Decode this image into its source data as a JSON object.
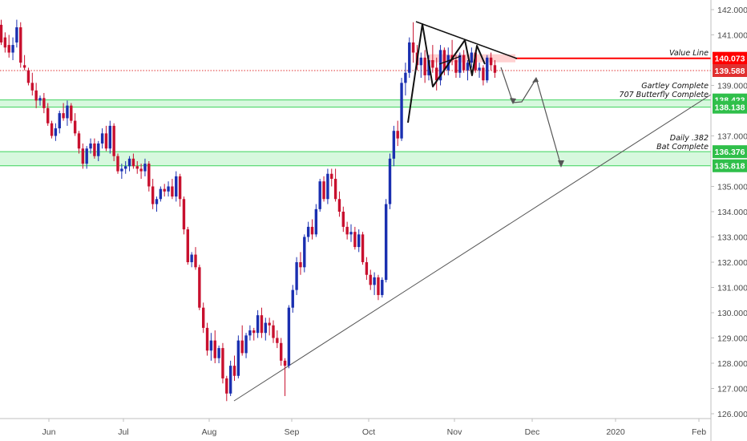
{
  "chart_data": {
    "type": "candlestick",
    "title": "",
    "xlabel": "",
    "ylabel": "",
    "ylim": [
      125.8,
      142.3
    ],
    "grid": false,
    "y_ticks": [
      "142.000",
      "141.000",
      "139.000",
      "137.000",
      "135.000",
      "134.000",
      "133.000",
      "132.000",
      "131.000",
      "130.000",
      "129.000",
      "128.000",
      "127.000",
      "126.000"
    ],
    "y_tick_values": [
      142,
      141,
      139,
      137,
      135,
      134,
      133,
      132,
      131,
      130,
      129,
      128,
      127,
      126
    ],
    "x_ticks": [
      "Jun",
      "Jul",
      "Aug",
      "Sep",
      "Oct",
      "Nov",
      "Dec",
      "2020",
      "Feb"
    ],
    "colors": {
      "up": "#1a2fb0",
      "down": "#c8102e",
      "zone_fill": "#c9f5d3",
      "zone_line": "#3cd35c",
      "value_line": "#ff0000",
      "trend_line": "#555555"
    },
    "price_labels": [
      {
        "text": "140.073",
        "value": 140.073,
        "color": "#ff0000"
      },
      {
        "text": "139.588",
        "value": 139.588,
        "color": "#e03030"
      },
      {
        "text": "138.423",
        "value": 138.423,
        "color": "#2fbf4a"
      },
      {
        "text": "138.138",
        "value": 138.138,
        "color": "#2fbf4a"
      },
      {
        "text": "136.376",
        "value": 136.376,
        "color": "#2fbf4a"
      },
      {
        "text": "135.818",
        "value": 135.818,
        "color": "#2fbf4a"
      }
    ],
    "zones": [
      {
        "low": 138.138,
        "high": 138.423
      },
      {
        "low": 135.818,
        "high": 136.376
      }
    ],
    "value_line": {
      "label": "Value Line",
      "value": 140.073
    },
    "dotted_line": {
      "value": 139.588
    },
    "annotations": [
      {
        "lines": [
          "Gartley Complete",
          "707 Butterfly Complete"
        ]
      },
      {
        "lines": [
          "Daily .382",
          "Bat Complete"
        ]
      }
    ],
    "candles": [
      [
        141.4,
        141.6,
        140.6,
        140.7
      ],
      [
        140.9,
        141.1,
        140.3,
        140.5
      ],
      [
        140.6,
        141.0,
        140.1,
        140.3
      ],
      [
        140.3,
        140.9,
        140.0,
        140.6
      ],
      [
        140.7,
        141.6,
        140.5,
        141.3
      ],
      [
        141.3,
        141.5,
        139.7,
        139.9
      ],
      [
        139.8,
        140.2,
        139.6,
        139.7
      ],
      [
        139.6,
        139.7,
        139.0,
        139.1
      ],
      [
        139.1,
        139.5,
        138.6,
        138.8
      ],
      [
        138.8,
        139.1,
        138.1,
        138.4
      ],
      [
        138.4,
        138.6,
        138.2,
        138.5
      ],
      [
        138.5,
        138.7,
        137.9,
        138.1
      ],
      [
        138.1,
        138.3,
        137.4,
        137.5
      ],
      [
        137.5,
        137.6,
        136.9,
        137.0
      ],
      [
        137.0,
        137.5,
        136.8,
        137.3
      ],
      [
        137.3,
        138.0,
        137.1,
        137.9
      ],
      [
        137.9,
        138.3,
        137.6,
        137.7
      ],
      [
        137.7,
        138.4,
        137.4,
        138.2
      ],
      [
        138.2,
        138.3,
        137.5,
        137.6
      ],
      [
        137.6,
        137.9,
        137.0,
        137.1
      ],
      [
        137.1,
        137.2,
        136.3,
        136.5
      ],
      [
        136.5,
        136.7,
        135.7,
        135.9
      ],
      [
        135.9,
        136.6,
        135.7,
        136.5
      ],
      [
        136.5,
        136.9,
        136.3,
        136.7
      ],
      [
        136.7,
        136.9,
        136.1,
        136.2
      ],
      [
        136.2,
        136.8,
        136.0,
        136.7
      ],
      [
        136.7,
        137.3,
        136.5,
        137.1
      ],
      [
        137.1,
        137.4,
        136.4,
        136.5
      ],
      [
        136.5,
        137.6,
        136.3,
        137.4
      ],
      [
        137.4,
        137.5,
        136.0,
        136.2
      ],
      [
        136.2,
        136.3,
        135.5,
        135.6
      ],
      [
        135.6,
        135.9,
        135.3,
        135.7
      ],
      [
        135.7,
        136.0,
        135.5,
        135.8
      ],
      [
        135.8,
        136.2,
        135.6,
        136.1
      ],
      [
        136.1,
        136.3,
        135.7,
        135.8
      ],
      [
        135.8,
        136.0,
        135.5,
        135.7
      ],
      [
        135.7,
        135.9,
        135.3,
        135.6
      ],
      [
        135.6,
        136.1,
        135.4,
        135.9
      ],
      [
        135.9,
        136.0,
        134.8,
        135.0
      ],
      [
        135.0,
        135.3,
        134.1,
        134.3
      ],
      [
        134.3,
        134.6,
        134.0,
        134.5
      ],
      [
        134.5,
        135.0,
        134.4,
        134.9
      ],
      [
        134.9,
        135.1,
        134.6,
        134.8
      ],
      [
        134.8,
        135.2,
        134.6,
        135.0
      ],
      [
        135.0,
        135.3,
        134.5,
        134.6
      ],
      [
        134.6,
        135.6,
        134.4,
        135.4
      ],
      [
        135.4,
        135.5,
        134.2,
        134.5
      ],
      [
        134.5,
        134.6,
        133.1,
        133.3
      ],
      [
        133.3,
        133.4,
        131.9,
        132.0
      ],
      [
        132.0,
        132.4,
        131.8,
        132.3
      ],
      [
        132.3,
        132.6,
        131.7,
        131.8
      ],
      [
        131.8,
        131.9,
        130.1,
        130.2
      ],
      [
        130.2,
        130.4,
        129.2,
        129.4
      ],
      [
        129.4,
        129.6,
        128.3,
        128.5
      ],
      [
        128.5,
        129.2,
        128.1,
        128.9
      ],
      [
        128.9,
        129.3,
        128.0,
        128.2
      ],
      [
        128.2,
        128.7,
        128.0,
        128.6
      ],
      [
        128.6,
        128.8,
        127.2,
        127.4
      ],
      [
        127.4,
        127.5,
        126.5,
        126.8
      ],
      [
        126.8,
        128.1,
        126.7,
        127.9
      ],
      [
        127.9,
        128.3,
        127.3,
        127.5
      ],
      [
        127.5,
        129.1,
        127.4,
        128.9
      ],
      [
        128.9,
        129.5,
        128.3,
        128.4
      ],
      [
        128.4,
        129.2,
        128.2,
        129.1
      ],
      [
        129.1,
        129.5,
        128.9,
        129.3
      ],
      [
        129.3,
        129.4,
        128.9,
        129.2
      ],
      [
        129.2,
        130.1,
        129.0,
        129.9
      ],
      [
        129.9,
        130.2,
        129.0,
        129.2
      ],
      [
        129.2,
        129.8,
        128.9,
        129.6
      ],
      [
        129.6,
        129.8,
        129.1,
        129.5
      ],
      [
        129.5,
        129.7,
        128.8,
        129.0
      ],
      [
        129.0,
        129.3,
        128.6,
        128.8
      ],
      [
        128.8,
        129.0,
        127.9,
        128.1
      ],
      [
        128.1,
        128.2,
        126.7,
        127.9
      ],
      [
        127.9,
        130.3,
        127.8,
        130.2
      ],
      [
        130.2,
        131.1,
        130.0,
        130.9
      ],
      [
        130.9,
        132.2,
        130.7,
        132.0
      ],
      [
        132.0,
        132.4,
        131.5,
        131.8
      ],
      [
        131.8,
        133.1,
        131.6,
        133.0
      ],
      [
        133.0,
        133.6,
        132.8,
        133.4
      ],
      [
        133.4,
        133.7,
        132.9,
        133.1
      ],
      [
        133.1,
        134.3,
        133.0,
        134.1
      ],
      [
        134.1,
        135.3,
        134.0,
        135.2
      ],
      [
        135.2,
        135.4,
        134.4,
        134.5
      ],
      [
        134.5,
        135.7,
        134.3,
        135.5
      ],
      [
        135.5,
        135.7,
        135.0,
        135.3
      ],
      [
        135.3,
        135.7,
        134.4,
        134.5
      ],
      [
        134.5,
        134.8,
        133.8,
        134.0
      ],
      [
        134.0,
        134.2,
        133.2,
        133.4
      ],
      [
        133.4,
        133.6,
        132.9,
        133.1
      ],
      [
        133.1,
        133.5,
        132.8,
        133.2
      ],
      [
        133.2,
        133.4,
        132.5,
        132.6
      ],
      [
        132.6,
        133.3,
        132.4,
        133.1
      ],
      [
        133.1,
        133.2,
        131.9,
        132.0
      ],
      [
        132.0,
        132.2,
        131.3,
        131.5
      ],
      [
        131.5,
        131.7,
        130.9,
        131.1
      ],
      [
        131.1,
        131.6,
        130.7,
        131.4
      ],
      [
        131.4,
        131.5,
        130.5,
        130.7
      ],
      [
        130.7,
        131.4,
        130.6,
        131.3
      ],
      [
        131.3,
        134.5,
        131.2,
        134.3
      ],
      [
        134.3,
        136.3,
        134.1,
        136.1
      ],
      [
        136.1,
        137.4,
        135.8,
        137.2
      ],
      [
        137.2,
        137.6,
        136.6,
        136.9
      ],
      [
        136.9,
        139.3,
        136.8,
        139.1
      ],
      [
        139.1,
        139.9,
        138.6,
        139.5
      ],
      [
        139.5,
        140.9,
        139.3,
        140.7
      ],
      [
        140.7,
        141.5,
        139.9,
        140.3
      ],
      [
        140.3,
        140.6,
        139.6,
        139.8
      ],
      [
        139.8,
        140.3,
        139.3,
        140.1
      ],
      [
        140.1,
        140.4,
        139.1,
        139.4
      ],
      [
        139.4,
        140.2,
        139.2,
        140.0
      ],
      [
        140.0,
        140.6,
        139.5,
        139.7
      ],
      [
        139.7,
        140.1,
        138.8,
        139.2
      ],
      [
        139.2,
        140.6,
        139.0,
        140.4
      ],
      [
        140.4,
        140.5,
        139.4,
        139.6
      ],
      [
        139.6,
        140.5,
        139.4,
        140.2
      ],
      [
        140.2,
        140.8,
        139.8,
        140.0
      ],
      [
        140.0,
        140.2,
        139.3,
        139.5
      ],
      [
        139.5,
        140.3,
        139.3,
        140.2
      ],
      [
        140.2,
        140.4,
        139.5,
        139.6
      ],
      [
        139.6,
        140.0,
        139.2,
        139.9
      ],
      [
        139.9,
        140.5,
        139.7,
        140.3
      ],
      [
        140.3,
        140.4,
        139.5,
        139.6
      ],
      [
        139.6,
        139.9,
        139.3,
        139.7
      ],
      [
        139.7,
        139.8,
        139.0,
        139.2
      ],
      [
        139.2,
        140.2,
        139.1,
        140.1
      ],
      [
        140.1,
        140.3,
        139.6,
        139.8
      ],
      [
        139.8,
        140.0,
        139.3,
        139.5
      ]
    ]
  }
}
